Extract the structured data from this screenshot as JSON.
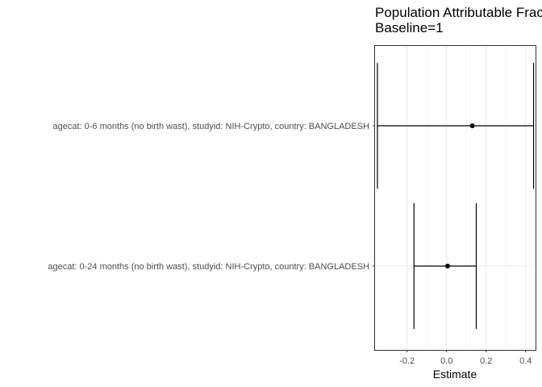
{
  "chart_data": {
    "type": "forest",
    "title_lines": [
      "Population Attributable Fraction,",
      "Baseline=1"
    ],
    "xlabel": "Estimate",
    "ylabel": "",
    "xlim": [
      -0.362,
      0.45
    ],
    "x_ticks": [
      -0.2,
      0.0,
      0.2,
      0.4
    ],
    "x_tick_labels": [
      "-0.2",
      "0.0",
      "0.2",
      "0.4"
    ],
    "grid": true,
    "categories": [
      "agecat: 0-6 months (no birth wast), studyid: NIH-Crypto, country: BANGLADESH",
      "agecat: 0-24 months (no birth wast), studyid: NIH-Crypto, country: BANGLADESH"
    ],
    "estimates": [
      0.13,
      0.005
    ],
    "ci_lower": [
      -0.35,
      -0.165
    ],
    "ci_upper": [
      0.44,
      0.15
    ],
    "colors": {
      "panel_border": "#333333",
      "grid": "#ebebeb",
      "ink": "#000000",
      "tick_text": "#4d4d4d"
    }
  }
}
